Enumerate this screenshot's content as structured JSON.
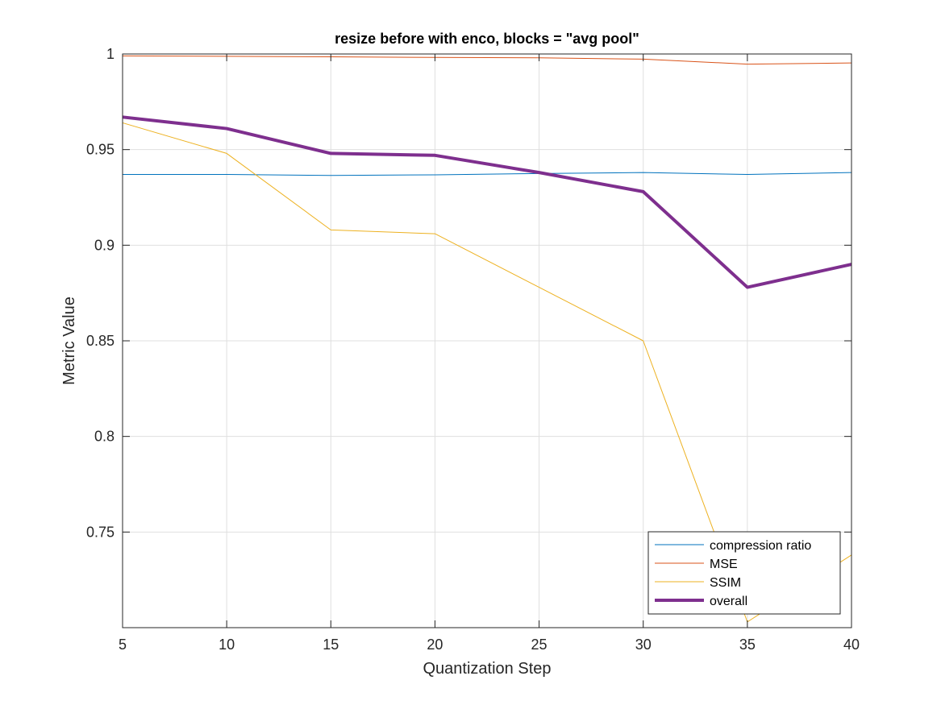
{
  "chart_data": {
    "type": "line",
    "title": "resize before with enco, blocks = \"avg pool\"",
    "xlabel": "Quantization Step",
    "ylabel": "Metric Value",
    "xlim": [
      5,
      40
    ],
    "ylim": [
      0.7,
      1.0
    ],
    "grid": true,
    "legend_position": "bottom-right",
    "x": [
      5,
      10,
      15,
      20,
      25,
      30,
      35,
      40
    ],
    "x_ticks": [
      5,
      10,
      15,
      20,
      25,
      30,
      35,
      40
    ],
    "y_ticks": [
      0.75,
      0.8,
      0.85,
      0.9,
      0.95,
      1.0
    ],
    "x_tick_labels": [
      "5",
      "10",
      "15",
      "20",
      "25",
      "30",
      "35",
      "40"
    ],
    "y_tick_labels": [
      "0.75",
      "0.8",
      "0.85",
      "0.9",
      "0.95",
      "1"
    ],
    "series": [
      {
        "name": "compression ratio",
        "color": "#0072BD",
        "line_width": "thin",
        "values": [
          0.937,
          0.937,
          0.9365,
          0.9368,
          0.9375,
          0.938,
          0.937,
          0.938
        ]
      },
      {
        "name": "MSE",
        "color": "#D95319",
        "line_width": "thin",
        "values": [
          0.999,
          0.9988,
          0.9985,
          0.9982,
          0.998,
          0.9973,
          0.9947,
          0.9953
        ]
      },
      {
        "name": "SSIM",
        "color": "#EDB120",
        "line_width": "thin",
        "values": [
          0.964,
          0.948,
          0.908,
          0.906,
          0.878,
          0.85,
          0.703,
          0.738
        ]
      },
      {
        "name": "overall",
        "color": "#7E2F8E",
        "line_width": "thick",
        "values": [
          0.967,
          0.961,
          0.948,
          0.947,
          0.938,
          0.928,
          0.878,
          0.89
        ]
      }
    ]
  }
}
